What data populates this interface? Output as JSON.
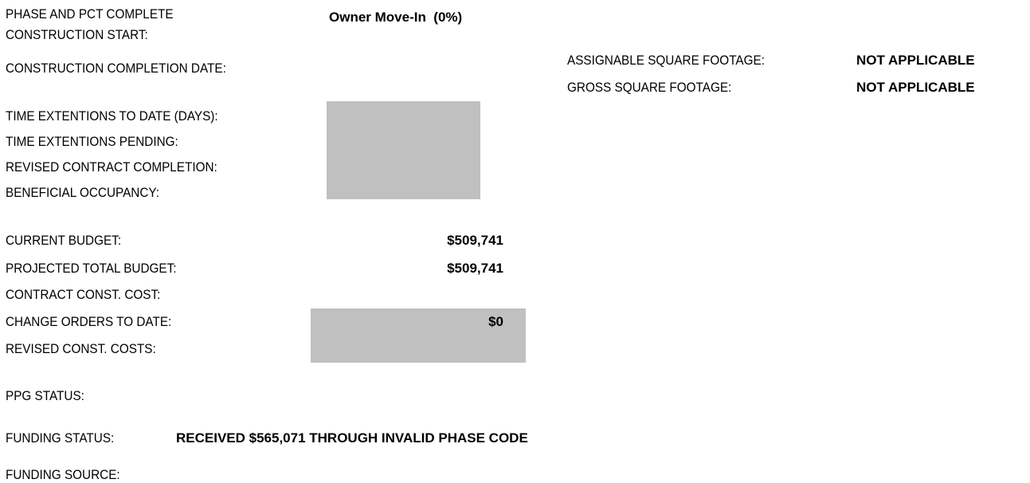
{
  "schedule": {
    "phase_label": "PHASE AND PCT COMPLETE",
    "phase_value": "Owner Move-In  (0%)",
    "construction_start_label": "CONSTRUCTION START:",
    "construction_completion_label": "CONSTRUCTION COMPLETION DATE:",
    "time_extensions_label": "TIME EXTENTIONS TO DATE (DAYS):",
    "time_extensions_pending_label": "TIME EXTENTIONS PENDING:",
    "revised_completion_label": "REVISED CONTRACT COMPLETION:",
    "beneficial_occupancy_label": "BENEFICIAL OCCUPANCY:"
  },
  "footage": {
    "assignable_label": "ASSIGNABLE SQUARE FOOTAGE:",
    "assignable_value": "NOT APPLICABLE",
    "gross_label": "GROSS SQUARE FOOTAGE:",
    "gross_value": "NOT APPLICABLE"
  },
  "budget": {
    "current_label": "CURRENT BUDGET:",
    "current_value": "$509,741",
    "projected_label": "PROJECTED TOTAL BUDGET:",
    "projected_value": "$509,741",
    "contract_label": "CONTRACT CONST. COST:",
    "change_orders_label": "CHANGE ORDERS TO DATE:",
    "change_orders_value": "$0",
    "revised_label": "REVISED CONST. COSTS:"
  },
  "status": {
    "ppg_label": "PPG STATUS:",
    "funding_status_label": "FUNDING STATUS:",
    "funding_status_value": "RECEIVED $565,071 THROUGH INVALID PHASE CODE",
    "funding_source_label": "FUNDING SOURCE:"
  }
}
